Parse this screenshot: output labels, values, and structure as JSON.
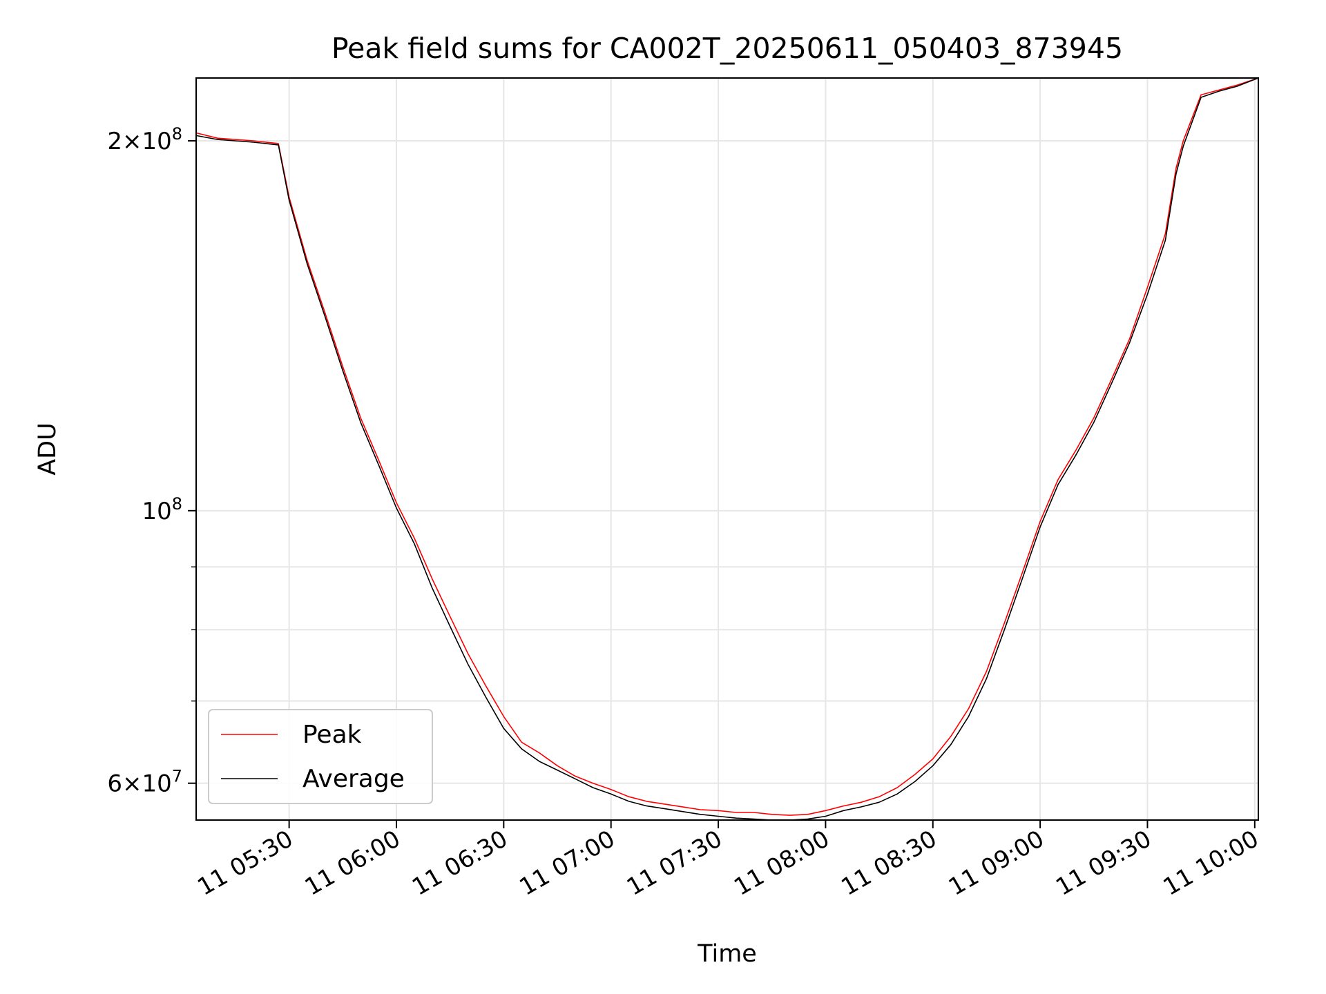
{
  "chart_data": {
    "type": "line",
    "title": "Peak field sums for CA002T_20250611_050403_873945",
    "xlabel": "Time",
    "ylabel": "ADU",
    "yscale": "log",
    "xlim": [
      "2025-06-11 05:04",
      "2025-06-11 10:01"
    ],
    "ylim": [
      56000000.0,
      225000000.0
    ],
    "x_ticks": [
      "11 05:30",
      "11 06:00",
      "11 06:30",
      "11 07:00",
      "11 07:30",
      "11 08:00",
      "11 08:30",
      "11 09:00",
      "11 09:30",
      "11 10:00"
    ],
    "y_major_ticks": [
      {
        "value": 60000000,
        "mantissa": "6",
        "base": "10",
        "exp": "7"
      },
      {
        "value": 100000000,
        "mantissa": "",
        "base": "10",
        "exp": "8"
      },
      {
        "value": 200000000,
        "mantissa": "2",
        "base": "10",
        "exp": "8"
      }
    ],
    "y_minor_ticks": [
      70000000,
      80000000,
      90000000
    ],
    "grid": true,
    "legend_position": "lower-left",
    "series": [
      {
        "name": "Peak",
        "color": "#ff0000",
        "x": [
          "05:04",
          "05:10",
          "05:20",
          "05:27",
          "05:30",
          "05:35",
          "05:40",
          "05:45",
          "05:50",
          "05:55",
          "06:00",
          "06:05",
          "06:10",
          "06:15",
          "06:20",
          "06:25",
          "06:30",
          "06:35",
          "06:40",
          "06:45",
          "06:50",
          "06:55",
          "07:00",
          "07:05",
          "07:10",
          "07:15",
          "07:20",
          "07:25",
          "07:30",
          "07:35",
          "07:40",
          "07:45",
          "07:50",
          "07:55",
          "08:00",
          "08:05",
          "08:10",
          "08:15",
          "08:20",
          "08:25",
          "08:30",
          "08:35",
          "08:40",
          "08:45",
          "08:50",
          "08:55",
          "09:00",
          "09:05",
          "09:10",
          "09:15",
          "09:20",
          "09:25",
          "09:30",
          "09:35",
          "09:38",
          "09:40",
          "09:45",
          "09:50",
          "09:55",
          "10:01"
        ],
        "y": [
          203000000,
          201000000,
          200000000,
          199000000,
          180000000,
          160000000,
          145000000,
          131000000,
          119000000,
          110000000,
          101500000,
          95000000,
          88000000,
          82000000,
          76500000,
          72000000,
          68000000,
          64800000,
          63500000,
          62000000,
          60800000,
          60000000,
          59300000,
          58500000,
          58000000,
          57700000,
          57400000,
          57100000,
          57000000,
          56800000,
          56800000,
          56600000,
          56500000,
          56600000,
          57000000,
          57500000,
          57900000,
          58500000,
          59500000,
          61000000,
          62800000,
          65500000,
          69000000,
          74000000,
          81000000,
          89000000,
          98000000,
          106000000,
          112000000,
          119000000,
          128000000,
          138000000,
          152000000,
          168000000,
          190000000,
          200000000,
          218000000,
          220000000,
          222000000,
          225000000
        ]
      },
      {
        "name": "Average",
        "color": "#000000",
        "x": [
          "05:04",
          "05:10",
          "05:20",
          "05:27",
          "05:30",
          "05:35",
          "05:40",
          "05:45",
          "05:50",
          "05:55",
          "06:00",
          "06:05",
          "06:10",
          "06:15",
          "06:20",
          "06:25",
          "06:30",
          "06:35",
          "06:40",
          "06:45",
          "06:50",
          "06:55",
          "07:00",
          "07:05",
          "07:10",
          "07:15",
          "07:20",
          "07:25",
          "07:30",
          "07:35",
          "07:40",
          "07:45",
          "07:50",
          "07:55",
          "08:00",
          "08:05",
          "08:10",
          "08:15",
          "08:20",
          "08:25",
          "08:30",
          "08:35",
          "08:40",
          "08:45",
          "08:50",
          "08:55",
          "09:00",
          "09:05",
          "09:10",
          "09:15",
          "09:20",
          "09:25",
          "09:30",
          "09:35",
          "09:38",
          "09:40",
          "09:45",
          "09:50",
          "09:55",
          "10:01"
        ],
        "y": [
          202000000,
          200500000,
          199500000,
          198500000,
          179000000,
          159000000,
          144000000,
          130000000,
          118000000,
          109000000,
          100500000,
          94000000,
          86500000,
          80500000,
          75000000,
          70500000,
          66500000,
          64000000,
          62500000,
          61500000,
          60500000,
          59500000,
          58800000,
          58000000,
          57500000,
          57200000,
          56900000,
          56600000,
          56400000,
          56200000,
          56100000,
          56000000,
          56000000,
          56100000,
          56400000,
          57000000,
          57400000,
          57900000,
          58800000,
          60200000,
          62000000,
          64500000,
          68000000,
          73000000,
          80000000,
          88000000,
          97000000,
          105000000,
          111000000,
          118000000,
          127000000,
          137000000,
          150000000,
          166000000,
          188000000,
          198000000,
          217000000,
          219500000,
          221500000,
          225000000
        ]
      }
    ]
  }
}
